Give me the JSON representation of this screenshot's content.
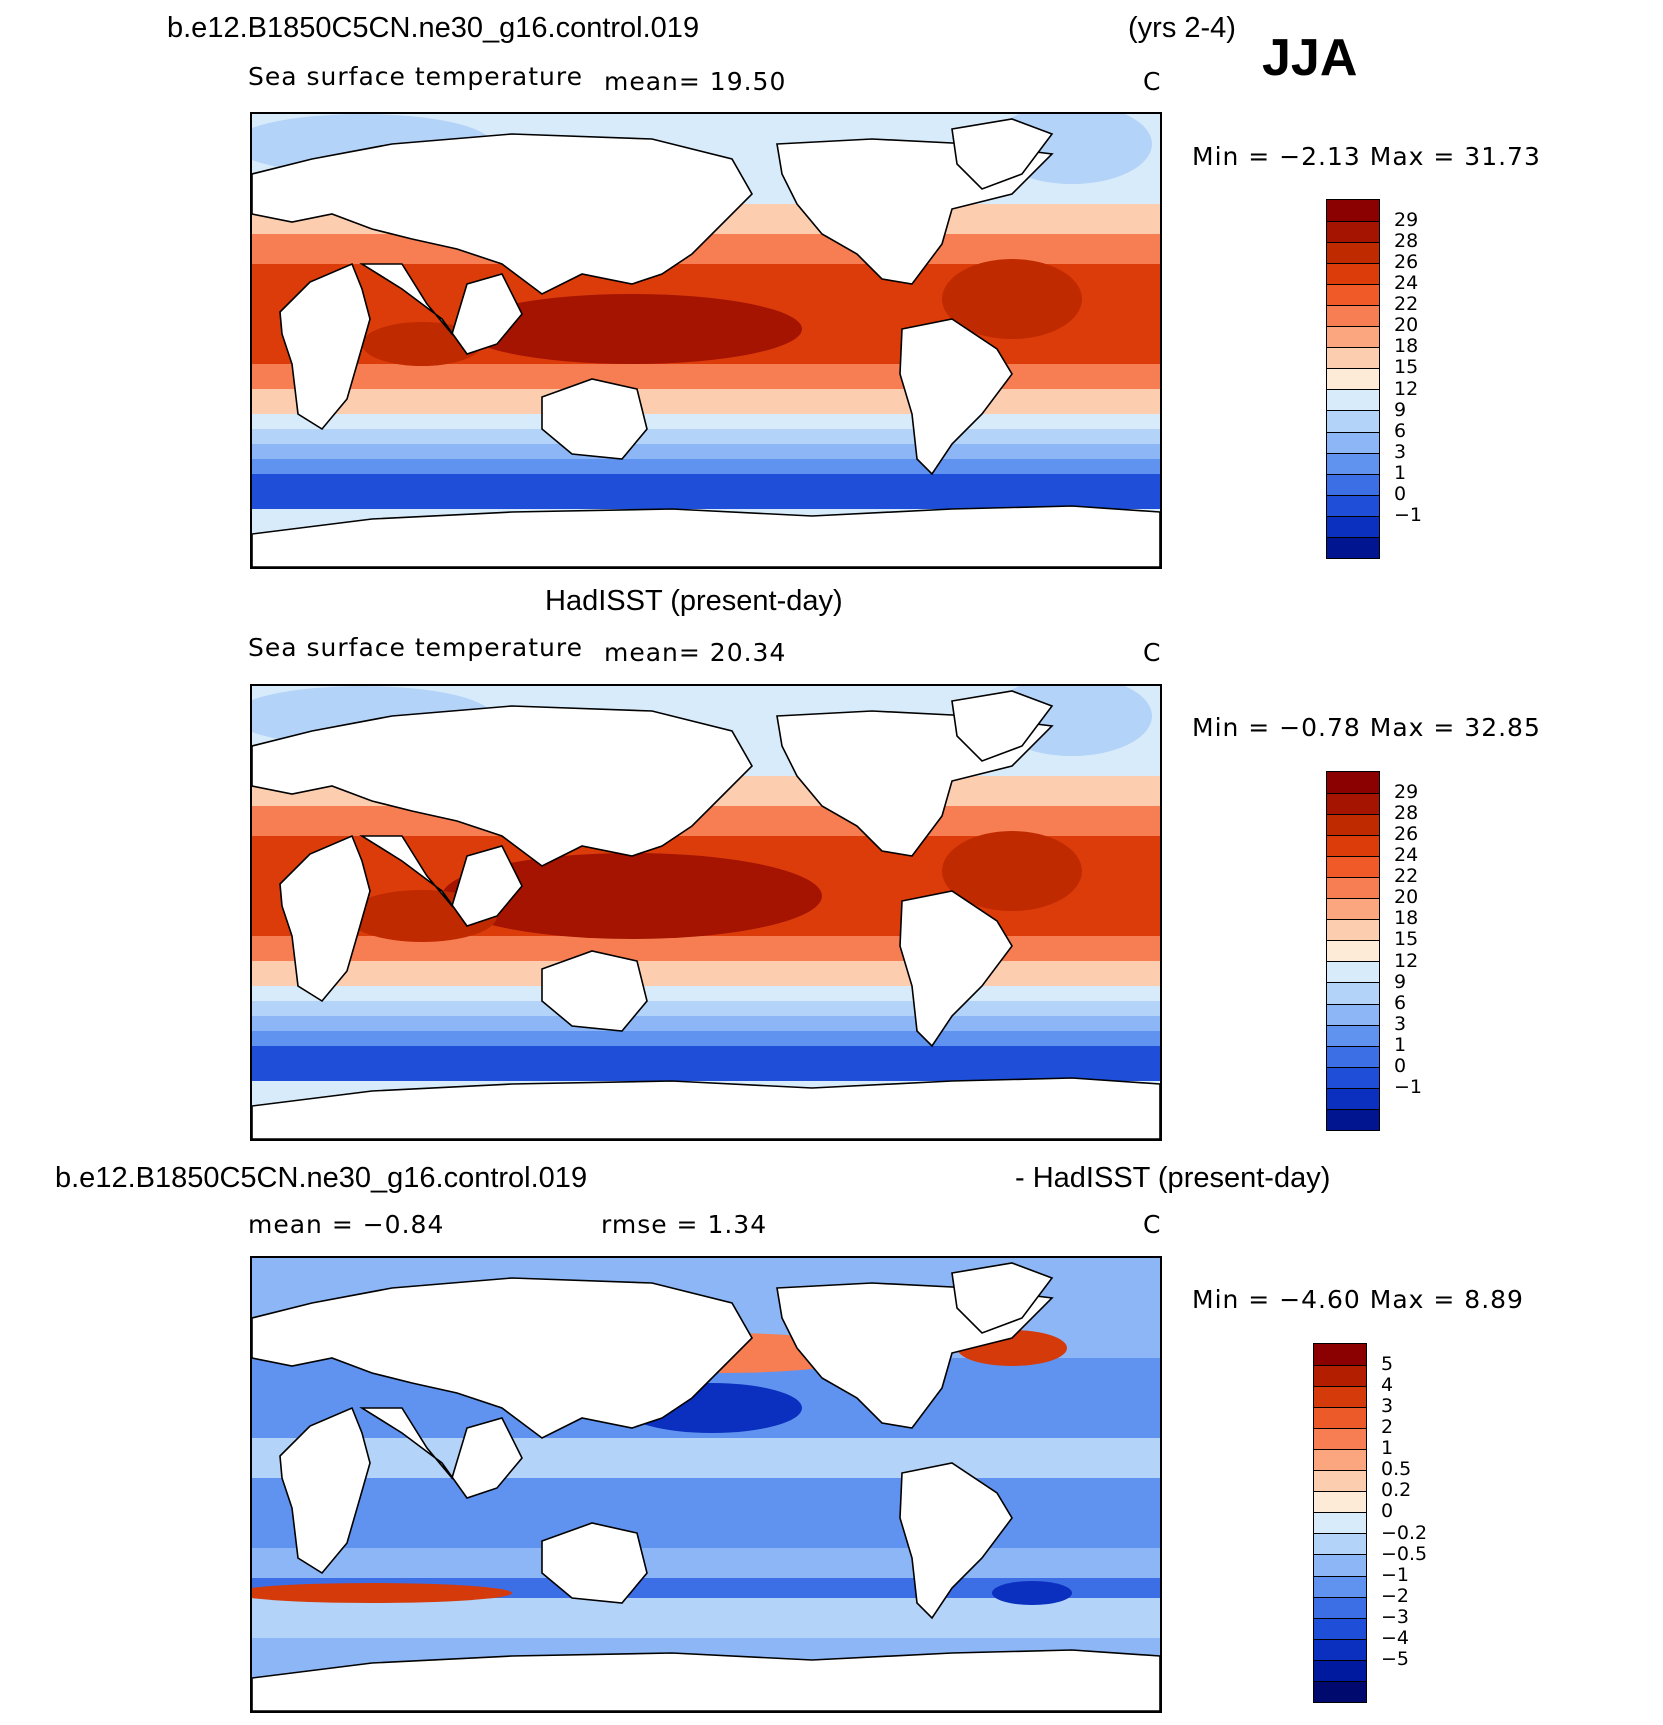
{
  "header": {
    "case_name": "b.e12.B1850C5CN.ne30_g16.control.019",
    "years": "(yrs 2-4)",
    "season": "JJA"
  },
  "panels": [
    {
      "id": "model",
      "title": "",
      "variable": "Sea surface temperature",
      "stat_line": "mean=   19.50",
      "units": "C",
      "minmax": "Min =   −2.13  Max =   31.73",
      "levels": [
        "29",
        "28",
        "26",
        "24",
        "22",
        "20",
        "18",
        "15",
        "12",
        "9",
        "6",
        "3",
        "1",
        "0",
        "−1"
      ],
      "colors": [
        "#8b0000",
        "#a51400",
        "#c02a00",
        "#dc3c0a",
        "#f05a28",
        "#f77e52",
        "#fba67f",
        "#fdcdb0",
        "#fdebd8",
        "#d8ebfa",
        "#b4d3f8",
        "#8cb6f5",
        "#6093ef",
        "#3c6ee6",
        "#1f4fd8",
        "#0b2fbf",
        "#00158f"
      ],
      "stats": {
        "mean": 19.5,
        "min": -2.13,
        "max": 31.73
      }
    },
    {
      "id": "obs",
      "title": "HadISST (present-day)",
      "variable": "Sea surface temperature",
      "stat_line": "mean=   20.34",
      "units": "C",
      "minmax": "Min =   −0.78  Max =   32.85",
      "levels": [
        "29",
        "28",
        "26",
        "24",
        "22",
        "20",
        "18",
        "15",
        "12",
        "9",
        "6",
        "3",
        "1",
        "0",
        "−1"
      ],
      "colors": [
        "#8b0000",
        "#a51400",
        "#c02a00",
        "#dc3c0a",
        "#f05a28",
        "#f77e52",
        "#fba67f",
        "#fdcdb0",
        "#fdebd8",
        "#d8ebfa",
        "#b4d3f8",
        "#8cb6f5",
        "#6093ef",
        "#3c6ee6",
        "#1f4fd8",
        "#0b2fbf",
        "#00158f"
      ],
      "stats": {
        "mean": 20.34,
        "min": -0.78,
        "max": 32.85
      }
    },
    {
      "id": "diff",
      "title_left": "b.e12.B1850C5CN.ne30_g16.control.019",
      "title_right": "- HadISST (present-day)",
      "stat_line": "mean =   −0.84",
      "rmse_line": "rmse =    1.34",
      "units": "C",
      "minmax": "Min =   −4.60  Max =    8.89",
      "levels": [
        "5",
        "4",
        "3",
        "2",
        "1",
        "0.5",
        "0.2",
        "0",
        "−0.2",
        "−0.5",
        "−1",
        "−2",
        "−3",
        "−4",
        "−5"
      ],
      "colors": [
        "#8b0000",
        "#b41e00",
        "#d43a0a",
        "#ec5a2a",
        "#f77e52",
        "#fba67f",
        "#fdcdb0",
        "#fdebd8",
        "#d8ebfa",
        "#b4d3f8",
        "#8cb6f5",
        "#6093ef",
        "#3c6ee6",
        "#1f4fd8",
        "#0b2fbf",
        "#001a9f",
        "#000a6e"
      ],
      "stats": {
        "mean": -0.84,
        "rmse": 1.34,
        "min": -4.6,
        "max": 8.89
      }
    }
  ]
}
